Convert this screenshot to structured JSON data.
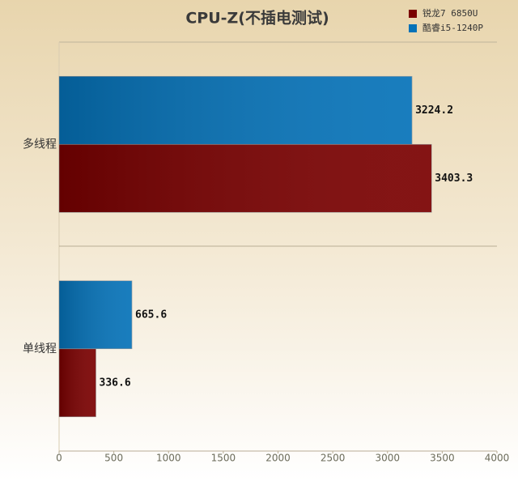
{
  "chart_data": {
    "type": "hbar",
    "title": "CPU-Z(不插电测试)",
    "categories": [
      "多线程",
      "单线程"
    ],
    "series": [
      {
        "name": "锐龙7 6850U",
        "color": "#7a0000",
        "values": [
          3403.3,
          336.6
        ]
      },
      {
        "name": "酷睿i5-1240P",
        "color": "#0572b8",
        "values": [
          3224.2,
          665.6
        ]
      }
    ],
    "xlim": [
      0,
      4000
    ],
    "xticks": [
      0,
      500,
      1000,
      1500,
      2000,
      2500,
      3000,
      3500,
      4000
    ],
    "legend": "top-right",
    "grid": false
  }
}
